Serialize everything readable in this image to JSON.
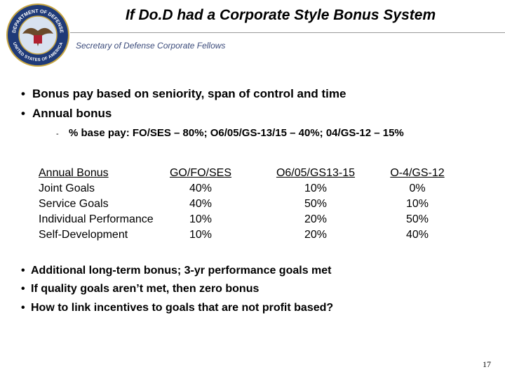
{
  "header": {
    "title": "If Do.D had a Corporate Style Bonus System",
    "subtitle": "Secretary of Defense Corporate Fellows"
  },
  "seal": {
    "top": "DEPARTMENT OF DEFENSE",
    "bottom": "UNITED STATES OF AMERICA"
  },
  "bullets": [
    "Bonus pay based on seniority, span of control and time",
    "Annual bonus"
  ],
  "sub_bullet": "% base pay:  FO/SES – 80%;  O6/05/GS-13/15 – 40%;  04/GS-12 – 15%",
  "table": {
    "header": [
      "Annual Bonus",
      "GO/FO/SES",
      "O6/05/GS13-15",
      "O-4/GS-12"
    ],
    "rows": [
      [
        "Joint Goals",
        "40%",
        "10%",
        "0%"
      ],
      [
        "Service Goals",
        "40%",
        "50%",
        "10%"
      ],
      [
        "Individual Performance",
        "10%",
        "20%",
        "50%"
      ],
      [
        "Self-Development",
        "10%",
        "20%",
        "40%"
      ]
    ]
  },
  "bullets_2": [
    "Additional long-term bonus; 3-yr performance goals met",
    "If quality goals aren’t met, then zero bonus",
    "How to link incentives to goals that are not profit based?"
  ],
  "page_number": "17"
}
